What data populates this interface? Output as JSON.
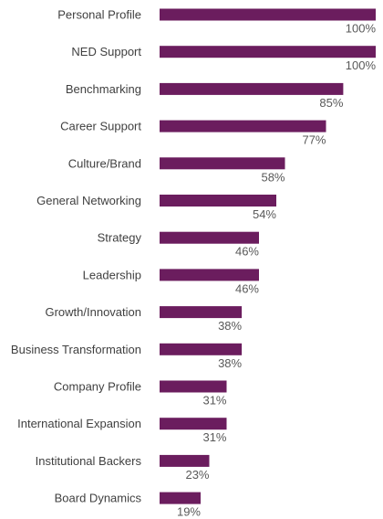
{
  "chart_data": {
    "type": "bar",
    "orientation": "horizontal",
    "categories": [
      "Personal Profile",
      "NED Support",
      "Benchmarking",
      "Career Support",
      "Culture/Brand",
      "General Networking",
      "Strategy",
      "Leadership",
      "Growth/Innovation",
      "Business Transformation",
      "Company Profile",
      "International Expansion",
      "Institutional Backers",
      "Board Dynamics"
    ],
    "values": [
      100,
      100,
      85,
      77,
      58,
      54,
      46,
      46,
      38,
      38,
      31,
      31,
      23,
      19
    ],
    "value_labels": [
      "100%",
      "100%",
      "85%",
      "77%",
      "58%",
      "54%",
      "46%",
      "46%",
      "38%",
      "38%",
      "31%",
      "31%",
      "23%",
      "19%"
    ],
    "xlim": [
      0,
      100
    ],
    "grid": false,
    "legend": "none",
    "bar_color": "#6b1d5e"
  }
}
